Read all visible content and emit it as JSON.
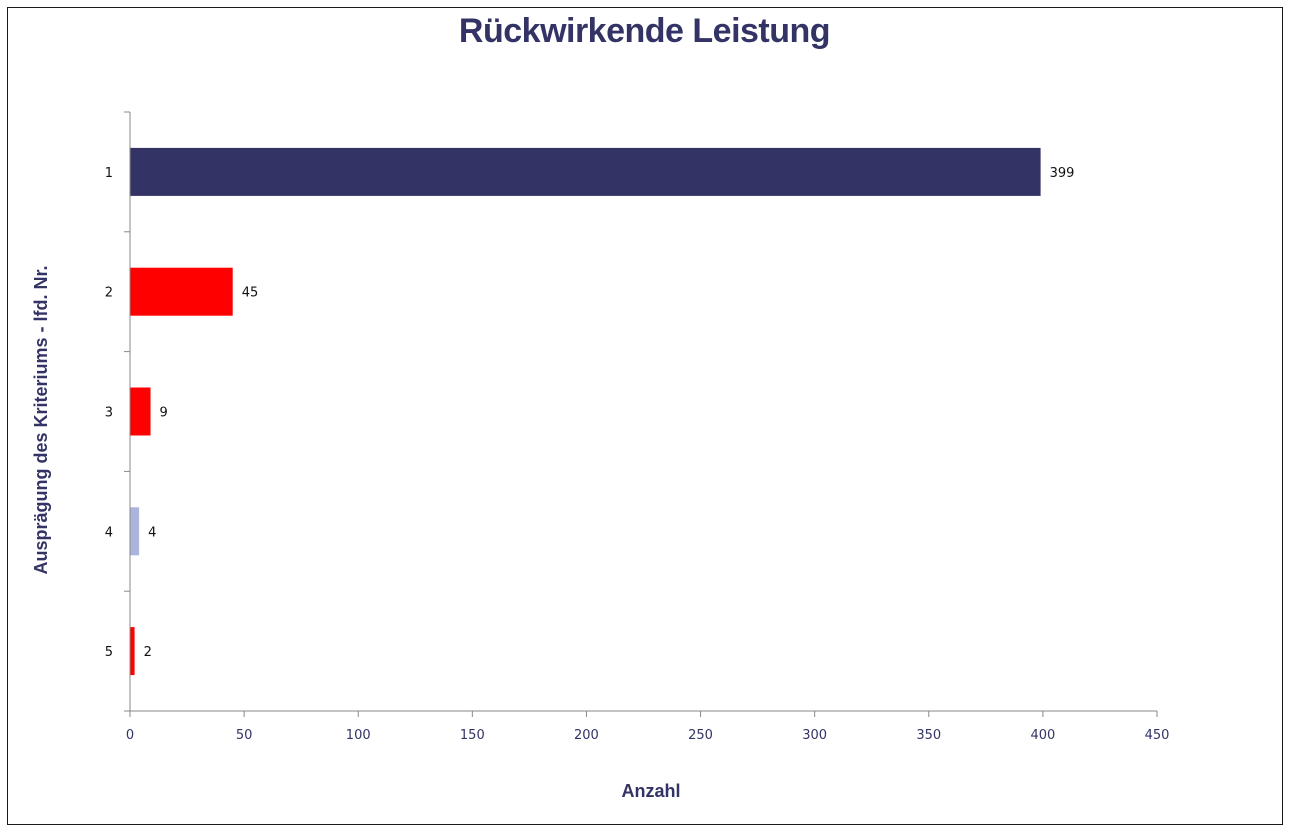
{
  "chart_data": {
    "type": "bar",
    "orientation": "horizontal",
    "title": "Rückwirkende Leistung",
    "xlabel": "Anzahl",
    "ylabel": "Ausprägung des Kriteriums - lfd. Nr.",
    "categories": [
      "1",
      "2",
      "3",
      "4",
      "5"
    ],
    "values": [
      399,
      45,
      9,
      4,
      2
    ],
    "data_labels": [
      "399",
      "45",
      "9",
      "4",
      "2"
    ],
    "bar_colors": [
      "#333366",
      "#ff0000",
      "#ff0000",
      "#aab4dc",
      "#ff0000"
    ],
    "xlim": [
      0,
      450
    ],
    "xticks": [
      0,
      50,
      100,
      150,
      200,
      250,
      300,
      350,
      400,
      450
    ],
    "grid": false,
    "legend": "none"
  },
  "colors": {
    "title": "#333366",
    "axis_title": "#333366",
    "x_tick_label": "#333366",
    "y_tick_label": "#111111",
    "data_label": "#111111",
    "axis_line": "#888888"
  }
}
